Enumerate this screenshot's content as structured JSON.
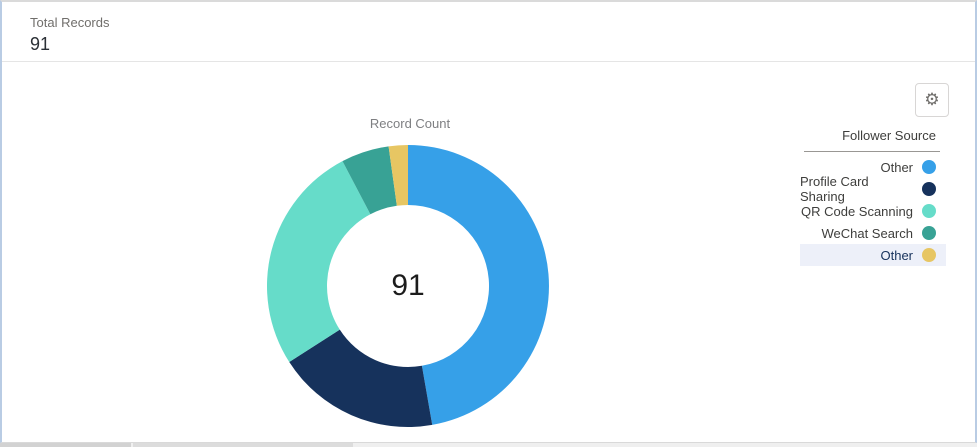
{
  "header": {
    "label": "Total Records",
    "value": "91"
  },
  "toolbar": {
    "gear_icon": "⚙"
  },
  "chart_data": {
    "type": "pie",
    "subtype": "donut",
    "title": "Record Count",
    "center_label": "91",
    "total": 91,
    "legend_title": "Follower Source",
    "legend_position": "right",
    "segments": [
      {
        "label": "Other",
        "value": 43,
        "color": "#36A0E8",
        "highlighted": false
      },
      {
        "label": "Profile Card Sharing",
        "value": 17,
        "color": "#16325C",
        "highlighted": false
      },
      {
        "label": "QR Code Scanning",
        "value": 24,
        "color": "#66DCC9",
        "highlighted": false
      },
      {
        "label": "WeChat Search",
        "value": 5,
        "color": "#38A295",
        "highlighted": false
      },
      {
        "label": "Other",
        "value": 2,
        "color": "#E7C663",
        "highlighted": true
      }
    ],
    "colors": {
      "highlight_row_bg": "#EDF0F9",
      "card_selection_border": "#B9CCE4"
    }
  }
}
